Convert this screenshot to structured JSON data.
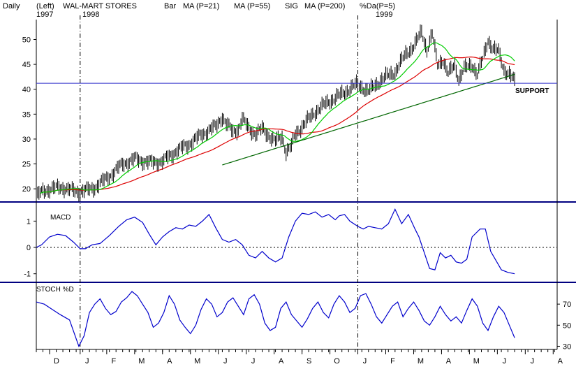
{
  "colors": {
    "background": "#ffffff",
    "price_bars": "#000000",
    "ma21": "#00cc00",
    "ma55": "#dd0000",
    "ma200": "#006600",
    "sig": "#0000cc",
    "support_line": "#3333cc",
    "panel_divider": "#000080",
    "indicator_line": "#0000cc",
    "text": "#000000"
  },
  "header": {
    "period_label": "Daily",
    "left_label": "(Left)",
    "ticker_title": "WAL-MART STORES",
    "bar_label": "Bar",
    "ma21_label": "MA (P=21)",
    "ma55_label": "MA (P=55)",
    "sig_label": "SIG",
    "ma200_label": "MA (P=200)",
    "pcta_label": "%Da(P=5)",
    "year_start": "1997",
    "year_1998": "1998",
    "year_1999": "1999"
  },
  "chart_data": [
    {
      "type": "line",
      "panel": "price",
      "y_ticks": [
        20,
        25,
        30,
        35,
        40,
        45,
        50
      ],
      "ylim": [
        17.5,
        54
      ],
      "xlim": [
        0,
        360
      ],
      "year_dividers": [
        {
          "x": 33,
          "label": "1998"
        },
        {
          "x": 242,
          "label": "1999"
        }
      ],
      "support": {
        "value": 41.2,
        "label": "SUPPORT"
      },
      "anchors": [
        [
          0,
          18.5
        ],
        [
          5,
          19.5
        ],
        [
          10,
          20
        ],
        [
          20,
          20.3
        ],
        [
          30,
          19.4
        ],
        [
          33,
          19.6
        ],
        [
          40,
          19.8
        ],
        [
          45,
          20.5
        ],
        [
          55,
          22.5
        ],
        [
          65,
          25
        ],
        [
          75,
          26
        ],
        [
          85,
          25.3
        ],
        [
          95,
          25.5
        ],
        [
          105,
          27.5
        ],
        [
          115,
          29
        ],
        [
          125,
          31
        ],
        [
          135,
          32.5
        ],
        [
          140,
          34.5
        ],
        [
          143,
          33
        ],
        [
          148,
          31.5
        ],
        [
          152,
          32
        ],
        [
          155,
          34
        ],
        [
          160,
          32.2
        ],
        [
          165,
          31
        ],
        [
          170,
          32
        ],
        [
          175,
          30.8
        ],
        [
          180,
          29.5
        ],
        [
          185,
          30.5
        ],
        [
          188,
          27.5
        ],
        [
          192,
          28.5
        ],
        [
          195,
          31
        ],
        [
          200,
          32.5
        ],
        [
          210,
          35.5
        ],
        [
          220,
          37.5
        ],
        [
          230,
          39
        ],
        [
          238,
          40.5
        ],
        [
          242,
          41
        ],
        [
          250,
          39.5
        ],
        [
          260,
          42
        ],
        [
          270,
          43.5
        ],
        [
          278,
          47
        ],
        [
          285,
          49
        ],
        [
          290,
          51.5
        ],
        [
          294,
          48
        ],
        [
          298,
          51
        ],
        [
          302,
          45
        ],
        [
          306,
          46
        ],
        [
          310,
          43
        ],
        [
          315,
          45
        ],
        [
          318,
          42
        ],
        [
          322,
          44
        ],
        [
          328,
          45
        ],
        [
          332,
          43
        ],
        [
          336,
          46
        ],
        [
          340,
          50
        ],
        [
          344,
          48
        ],
        [
          348,
          47.5
        ],
        [
          352,
          44
        ],
        [
          356,
          43
        ],
        [
          360,
          41.5
        ]
      ],
      "series": [
        {
          "name": "MA (P=21)",
          "period": 21
        },
        {
          "name": "MA (P=55)",
          "period": 55
        },
        {
          "name": "MA (P=200)",
          "period": 200
        }
      ]
    },
    {
      "type": "line",
      "panel": "indicator",
      "label": "MACD",
      "y_ticks": [
        1,
        0,
        -1
      ],
      "ylim": [
        -1.3,
        1.7
      ],
      "zero_line": 0,
      "x": [
        0,
        4,
        10,
        16,
        22,
        28,
        33,
        37,
        42,
        48,
        55,
        62,
        68,
        74,
        80,
        85,
        90,
        95,
        100,
        105,
        110,
        115,
        120,
        125,
        130,
        135,
        140,
        145,
        150,
        155,
        160,
        165,
        170,
        175,
        180,
        185,
        190,
        195,
        200,
        205,
        210,
        215,
        220,
        225,
        228,
        232,
        236,
        242,
        246,
        250,
        255,
        260,
        265,
        270,
        275,
        280,
        285,
        288,
        292,
        296,
        300,
        304,
        308,
        312,
        316,
        320,
        324,
        328,
        334,
        338,
        342,
        346,
        350,
        355,
        360
      ],
      "values": [
        0,
        0.1,
        0.4,
        0.5,
        0.45,
        0.2,
        -0.05,
        -0.05,
        0.1,
        0.15,
        0.45,
        0.8,
        1.05,
        1.15,
        0.95,
        0.5,
        0.1,
        0.4,
        0.6,
        0.75,
        0.7,
        0.85,
        0.8,
        1.0,
        1.25,
        0.75,
        0.3,
        0.2,
        0.3,
        0.1,
        -0.3,
        -0.4,
        -0.15,
        -0.4,
        -0.55,
        -0.4,
        0.4,
        1.0,
        1.3,
        1.25,
        1.35,
        1.15,
        1.25,
        1.05,
        1.2,
        1.25,
        1.0,
        0.8,
        0.7,
        0.8,
        0.75,
        0.7,
        0.9,
        1.45,
        0.9,
        1.25,
        0.7,
        0.4,
        -0.2,
        -0.8,
        -0.85,
        -0.2,
        -0.4,
        -0.3,
        -0.55,
        -0.6,
        -0.45,
        0.4,
        0.7,
        0.7,
        -0.15,
        -0.5,
        -0.85,
        -0.95,
        -1.0
      ]
    },
    {
      "type": "line",
      "panel": "indicator",
      "label": "STOCH %D",
      "y_ticks": [
        70,
        50,
        30
      ],
      "ylim": [
        27,
        90
      ],
      "x": [
        0,
        6,
        12,
        18,
        25,
        32,
        36,
        40,
        44,
        48,
        52,
        56,
        60,
        64,
        68,
        72,
        76,
        80,
        84,
        88,
        92,
        96,
        100,
        104,
        108,
        112,
        116,
        120,
        124,
        128,
        132,
        136,
        140,
        144,
        148,
        152,
        156,
        160,
        164,
        168,
        172,
        176,
        180,
        184,
        188,
        192,
        196,
        200,
        204,
        208,
        212,
        216,
        220,
        224,
        228,
        232,
        236,
        240,
        244,
        248,
        252,
        256,
        260,
        264,
        268,
        272,
        276,
        280,
        284,
        288,
        292,
        296,
        300,
        304,
        308,
        312,
        316,
        320,
        324,
        328,
        332,
        336,
        340,
        344,
        348,
        352,
        356,
        360
      ],
      "values": [
        72,
        70,
        65,
        60,
        55,
        30,
        40,
        62,
        70,
        75,
        66,
        60,
        63,
        72,
        76,
        82,
        78,
        70,
        62,
        48,
        52,
        62,
        78,
        70,
        55,
        48,
        42,
        50,
        65,
        75,
        70,
        58,
        62,
        72,
        76,
        68,
        60,
        75,
        79,
        70,
        52,
        45,
        48,
        66,
        72,
        60,
        54,
        48,
        56,
        66,
        72,
        62,
        57,
        70,
        78,
        72,
        62,
        66,
        78,
        80,
        70,
        58,
        52,
        60,
        68,
        72,
        58,
        66,
        72,
        64,
        54,
        50,
        58,
        68,
        60,
        54,
        58,
        52,
        64,
        75,
        68,
        52,
        45,
        58,
        68,
        62,
        50,
        38
      ]
    }
  ],
  "x_axis": {
    "month_labels": [
      {
        "x": 10,
        "label": "D"
      },
      {
        "x": 33,
        "label": "J"
      },
      {
        "x": 53,
        "label": "F"
      },
      {
        "x": 74,
        "label": "M"
      },
      {
        "x": 95,
        "label": "A"
      },
      {
        "x": 116,
        "label": "M"
      },
      {
        "x": 137,
        "label": "J"
      },
      {
        "x": 158,
        "label": "J"
      },
      {
        "x": 179,
        "label": "A"
      },
      {
        "x": 200,
        "label": "S"
      },
      {
        "x": 221,
        "label": "O"
      },
      {
        "x": 242,
        "label": "J"
      },
      {
        "x": 263,
        "label": "F"
      },
      {
        "x": 284,
        "label": "M"
      },
      {
        "x": 305,
        "label": "A"
      },
      {
        "x": 326,
        "label": "M"
      },
      {
        "x": 347,
        "label": "J"
      },
      {
        "x": 368,
        "label": "J"
      },
      {
        "x": 389,
        "label": "A"
      }
    ]
  }
}
